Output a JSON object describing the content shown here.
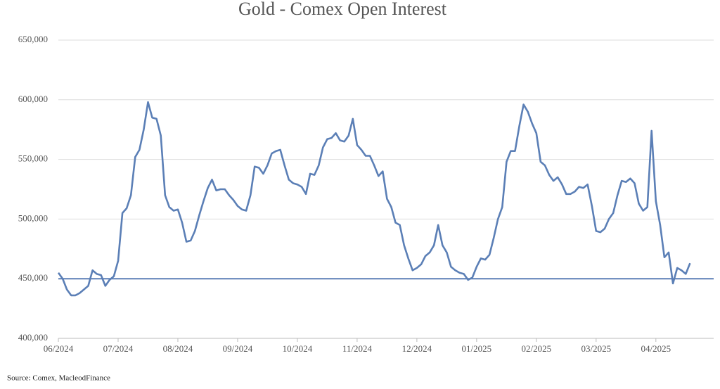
{
  "chart_data": {
    "type": "line",
    "title": "Gold - Comex Open Interest",
    "source": "Source: Comex,  MacleodFinance",
    "categories": [
      "06/2024",
      null,
      null,
      null,
      null,
      null,
      null,
      null,
      null,
      null,
      null,
      null,
      null,
      null,
      "07/2024",
      null,
      null,
      null,
      null,
      null,
      null,
      null,
      null,
      null,
      null,
      null,
      null,
      null,
      "08/2024",
      null,
      null,
      null,
      null,
      null,
      null,
      null,
      null,
      null,
      null,
      null,
      null,
      null,
      "09/2024",
      null,
      null,
      null,
      null,
      null,
      null,
      null,
      null,
      null,
      null,
      null,
      null,
      null,
      "10/2024",
      null,
      null,
      null,
      null,
      null,
      null,
      null,
      null,
      null,
      null,
      null,
      null,
      null,
      "11/2024",
      null,
      null,
      null,
      null,
      null,
      null,
      null,
      null,
      null,
      null,
      null,
      null,
      null,
      "12/2024",
      null,
      null,
      null,
      null,
      null,
      null,
      null,
      null,
      null,
      null,
      null,
      null,
      null,
      "01/2025",
      null,
      null,
      null,
      null,
      null,
      null,
      null,
      null,
      null,
      null,
      null,
      null,
      null,
      "02/2025",
      null,
      null,
      null,
      null,
      null,
      null,
      null,
      null,
      null,
      null,
      null,
      null,
      null,
      "03/2025",
      null,
      null,
      null,
      null,
      null,
      null,
      null,
      null,
      null,
      null,
      null,
      null,
      null,
      "04/2025",
      null,
      null,
      null,
      null,
      null,
      null,
      null,
      null
    ],
    "values": [
      455000,
      450000,
      441000,
      436000,
      436000,
      438000,
      441000,
      444000,
      457000,
      454000,
      453000,
      444000,
      449000,
      452000,
      465000,
      505000,
      509000,
      520000,
      552000,
      558000,
      575000,
      598000,
      585000,
      584000,
      570000,
      520000,
      510000,
      507000,
      508000,
      497000,
      481000,
      482000,
      490000,
      503000,
      515000,
      526000,
      533000,
      524000,
      525000,
      525000,
      520000,
      516000,
      511000,
      508000,
      507000,
      520000,
      544000,
      543000,
      538000,
      545000,
      555000,
      557000,
      558000,
      545000,
      533000,
      530000,
      529000,
      527000,
      521000,
      538000,
      537000,
      545000,
      560000,
      567000,
      568000,
      572000,
      566000,
      565000,
      570000,
      584000,
      562000,
      558000,
      553000,
      553000,
      545000,
      536000,
      540000,
      517000,
      510000,
      497000,
      495000,
      478000,
      467000,
      457000,
      459000,
      462000,
      469000,
      472000,
      478000,
      495000,
      478000,
      472000,
      460000,
      457000,
      455000,
      454000,
      449000,
      451000,
      460000,
      467000,
      466000,
      470000,
      484000,
      500000,
      510000,
      548000,
      557000,
      557000,
      578000,
      596000,
      590000,
      580000,
      572000,
      548000,
      545000,
      537000,
      532000,
      535000,
      529000,
      521000,
      521000,
      523000,
      527000,
      526000,
      529000,
      511000,
      490000,
      489000,
      492000,
      500000,
      505000,
      520000,
      532000,
      531000,
      534000,
      530000,
      513000,
      507000,
      510000,
      574000,
      515000,
      495000,
      468000,
      472000,
      446000,
      459000,
      457000,
      454000,
      463000
    ],
    "color": "#5b7fb6",
    "reference_line": 450000,
    "ylim": [
      400000,
      650000
    ],
    "yticks": [
      {
        "value": 400000,
        "label": "400,000"
      },
      {
        "value": 450000,
        "label": "450,000"
      },
      {
        "value": 500000,
        "label": "500,000"
      },
      {
        "value": 550000,
        "label": "550,000"
      },
      {
        "value": 600000,
        "label": "600,000"
      },
      {
        "value": 650000,
        "label": "650,000"
      }
    ],
    "grid": true
  }
}
